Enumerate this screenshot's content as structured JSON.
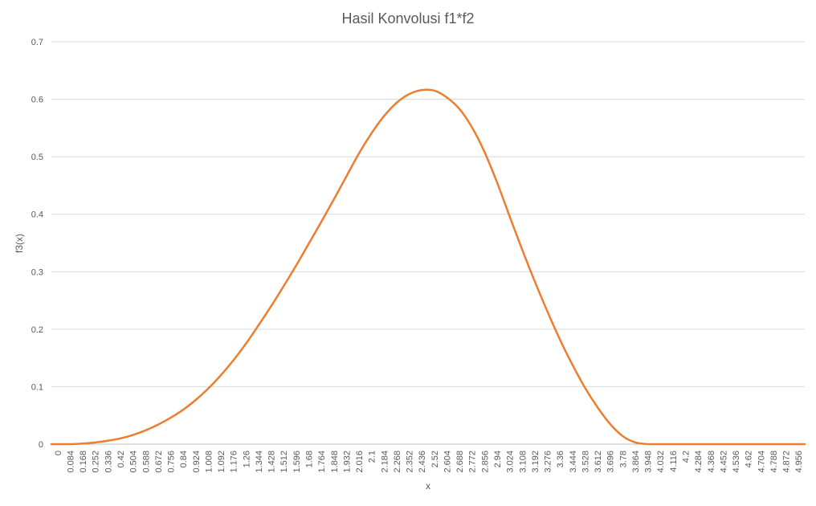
{
  "chart_data": {
    "type": "line",
    "title": "Hasil Konvolusi f1*f2",
    "xlabel": "x",
    "ylabel": "f3(x)",
    "ylim": [
      0,
      0.7
    ],
    "yticks": [
      "0",
      "0.1",
      "0.2",
      "0.3",
      "0.4",
      "0.5",
      "0.6",
      "0.7"
    ],
    "x_tick_labels": [
      "0",
      "0.084",
      "0.168",
      "0.252",
      "0.336",
      "0.42",
      "0.504",
      "0.588",
      "0.672",
      "0.756",
      "0.84",
      "0.924",
      "1.008",
      "1.092",
      "1.176",
      "1.26",
      "1.344",
      "1.428",
      "1.512",
      "1.596",
      "1.68",
      "1.764",
      "1.848",
      "1.932",
      "2.016",
      "2.1",
      "2.184",
      "2.268",
      "2.352",
      "2.436",
      "2.52",
      "2.604",
      "2.688",
      "2.772",
      "2.856",
      "2.94",
      "3.024",
      "3.108",
      "3.192",
      "3.276",
      "3.36",
      "3.444",
      "3.528",
      "3.612",
      "3.696",
      "3.78",
      "3.864",
      "3.948",
      "4.032",
      "4.116",
      "4.2",
      "4.284",
      "4.368",
      "4.452",
      "4.536",
      "4.62",
      "4.704",
      "4.788",
      "4.872",
      "4.956"
    ],
    "grid": true,
    "legend": "none",
    "color": "#ED7D31",
    "series": [
      {
        "x": [
          0,
          0.084,
          0.168,
          0.252,
          0.336,
          0.42,
          0.504,
          0.588,
          0.672,
          0.756,
          0.84,
          0.924,
          1.008,
          1.092,
          1.176,
          1.26,
          1.344,
          1.428,
          1.512,
          1.596,
          1.68,
          1.764,
          1.848,
          1.932,
          2.016,
          2.1,
          2.184,
          2.268,
          2.352,
          2.436,
          2.52,
          2.604,
          2.688,
          2.772,
          2.856,
          2.94,
          3.024,
          3.108,
          3.192,
          3.276,
          3.36,
          3.444,
          3.528,
          3.612,
          3.696,
          3.78,
          3.864,
          3.948,
          4.032,
          4.116,
          4.2,
          4.284,
          4.368,
          4.452,
          4.536,
          4.62,
          4.704,
          4.788,
          4.872,
          4.956
        ],
        "values": [
          0,
          0,
          0.001,
          0.003,
          0.006,
          0.01,
          0.016,
          0.024,
          0.034,
          0.046,
          0.06,
          0.077,
          0.097,
          0.12,
          0.146,
          0.175,
          0.207,
          0.24,
          0.275,
          0.311,
          0.349,
          0.387,
          0.426,
          0.466,
          0.506,
          0.541,
          0.571,
          0.594,
          0.609,
          0.616,
          0.615,
          0.603,
          0.583,
          0.551,
          0.508,
          0.455,
          0.396,
          0.338,
          0.283,
          0.231,
          0.182,
          0.138,
          0.098,
          0.064,
          0.035,
          0.014,
          0.003,
          0,
          0,
          0,
          0,
          0,
          0,
          0,
          0,
          0,
          0,
          0,
          0,
          0
        ]
      }
    ]
  }
}
